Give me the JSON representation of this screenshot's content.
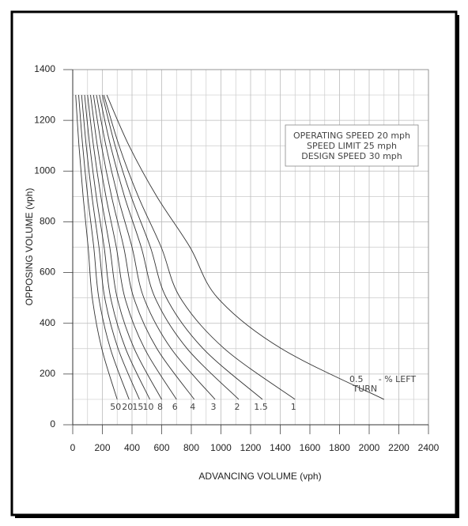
{
  "chart_data": {
    "type": "line",
    "xlabel": "ADVANCING VOLUME (vph)",
    "ylabel": "OPPOSING VOLUME (vph)",
    "xlim": [
      0,
      2400
    ],
    "ylim": [
      0,
      1400
    ],
    "xticks": [
      0,
      200,
      400,
      600,
      800,
      1000,
      1200,
      1400,
      1600,
      1800,
      2000,
      2200,
      2400
    ],
    "yticks": [
      0,
      200,
      400,
      600,
      800,
      1000,
      1200,
      1400
    ],
    "minor_xticks": [
      100,
      300,
      500,
      700,
      900,
      1100,
      1300,
      1500,
      1700,
      1900,
      2100,
      2300
    ],
    "minor_yticks": [
      100,
      300,
      500,
      700,
      900,
      1100,
      1300
    ],
    "grid": true,
    "annotation": [
      "OPERATING SPEED 20 mph",
      "SPEED LIMIT 25 mph",
      "DESIGN SPEED 30 mph"
    ],
    "turn_label": [
      "- % LEFT",
      "TURN"
    ],
    "series": [
      {
        "name": "50",
        "color": "#333",
        "x": [
          20,
          42,
          70,
          104,
          132,
          196,
          300
        ],
        "values": [
          1300,
          1100,
          900,
          700,
          500,
          300,
          100
        ]
      },
      {
        "name": "20",
        "color": "#333",
        "x": [
          40,
          67,
          101,
          142,
          176,
          254,
          380
        ],
        "values": [
          1300,
          1100,
          900,
          700,
          500,
          300,
          100
        ]
      },
      {
        "name": "15",
        "color": "#333",
        "x": [
          60,
          91,
          130,
          177,
          216,
          306,
          450
        ],
        "values": [
          1300,
          1100,
          900,
          700,
          500,
          300,
          100
        ]
      },
      {
        "name": "10",
        "color": "#333",
        "x": [
          80,
          115,
          159,
          212,
          256,
          357,
          520
        ],
        "values": [
          1300,
          1100,
          900,
          700,
          500,
          300,
          100
        ]
      },
      {
        "name": "8",
        "color": "#333",
        "x": [
          100,
          140,
          190,
          250,
          300,
          415,
          600
        ],
        "values": [
          1300,
          1100,
          900,
          700,
          500,
          300,
          100
        ]
      },
      {
        "name": "6",
        "color": "#333",
        "x": [
          120,
          166,
          224,
          294,
          352,
          485,
          700
        ],
        "values": [
          1300,
          1100,
          900,
          700,
          500,
          300,
          100
        ]
      },
      {
        "name": "4",
        "color": "#333",
        "x": [
          140,
          194,
          262,
          344,
          412,
          568,
          820
        ],
        "values": [
          1300,
          1100,
          900,
          700,
          500,
          300,
          100
        ]
      },
      {
        "name": "3",
        "color": "#333",
        "x": [
          160,
          224,
          304,
          400,
          480,
          664,
          960
        ],
        "values": [
          1300,
          1100,
          900,
          700,
          500,
          300,
          100
        ]
      },
      {
        "name": "2",
        "color": "#333",
        "x": [
          180,
          255,
          349,
          462,
          556,
          772,
          1120
        ],
        "values": [
          1300,
          1100,
          900,
          700,
          500,
          300,
          100
        ]
      },
      {
        "name": "1.5",
        "color": "#333",
        "x": [
          200,
          286,
          394,
          524,
          632,
          880,
          1280
        ],
        "values": [
          1300,
          1100,
          900,
          700,
          500,
          300,
          100
        ]
      },
      {
        "name": "1",
        "color": "#333",
        "x": [
          210,
          313,
          442,
          597,
          726,
          1023,
          1500
        ],
        "values": [
          1300,
          1100,
          900,
          700,
          500,
          300,
          100
        ]
      },
      {
        "name": "0.5",
        "color": "#333",
        "x": [
          230,
          380,
          567,
          791,
          978,
          1408,
          2100
        ],
        "values": [
          1300,
          1100,
          900,
          700,
          500,
          300,
          100
        ]
      }
    ]
  }
}
